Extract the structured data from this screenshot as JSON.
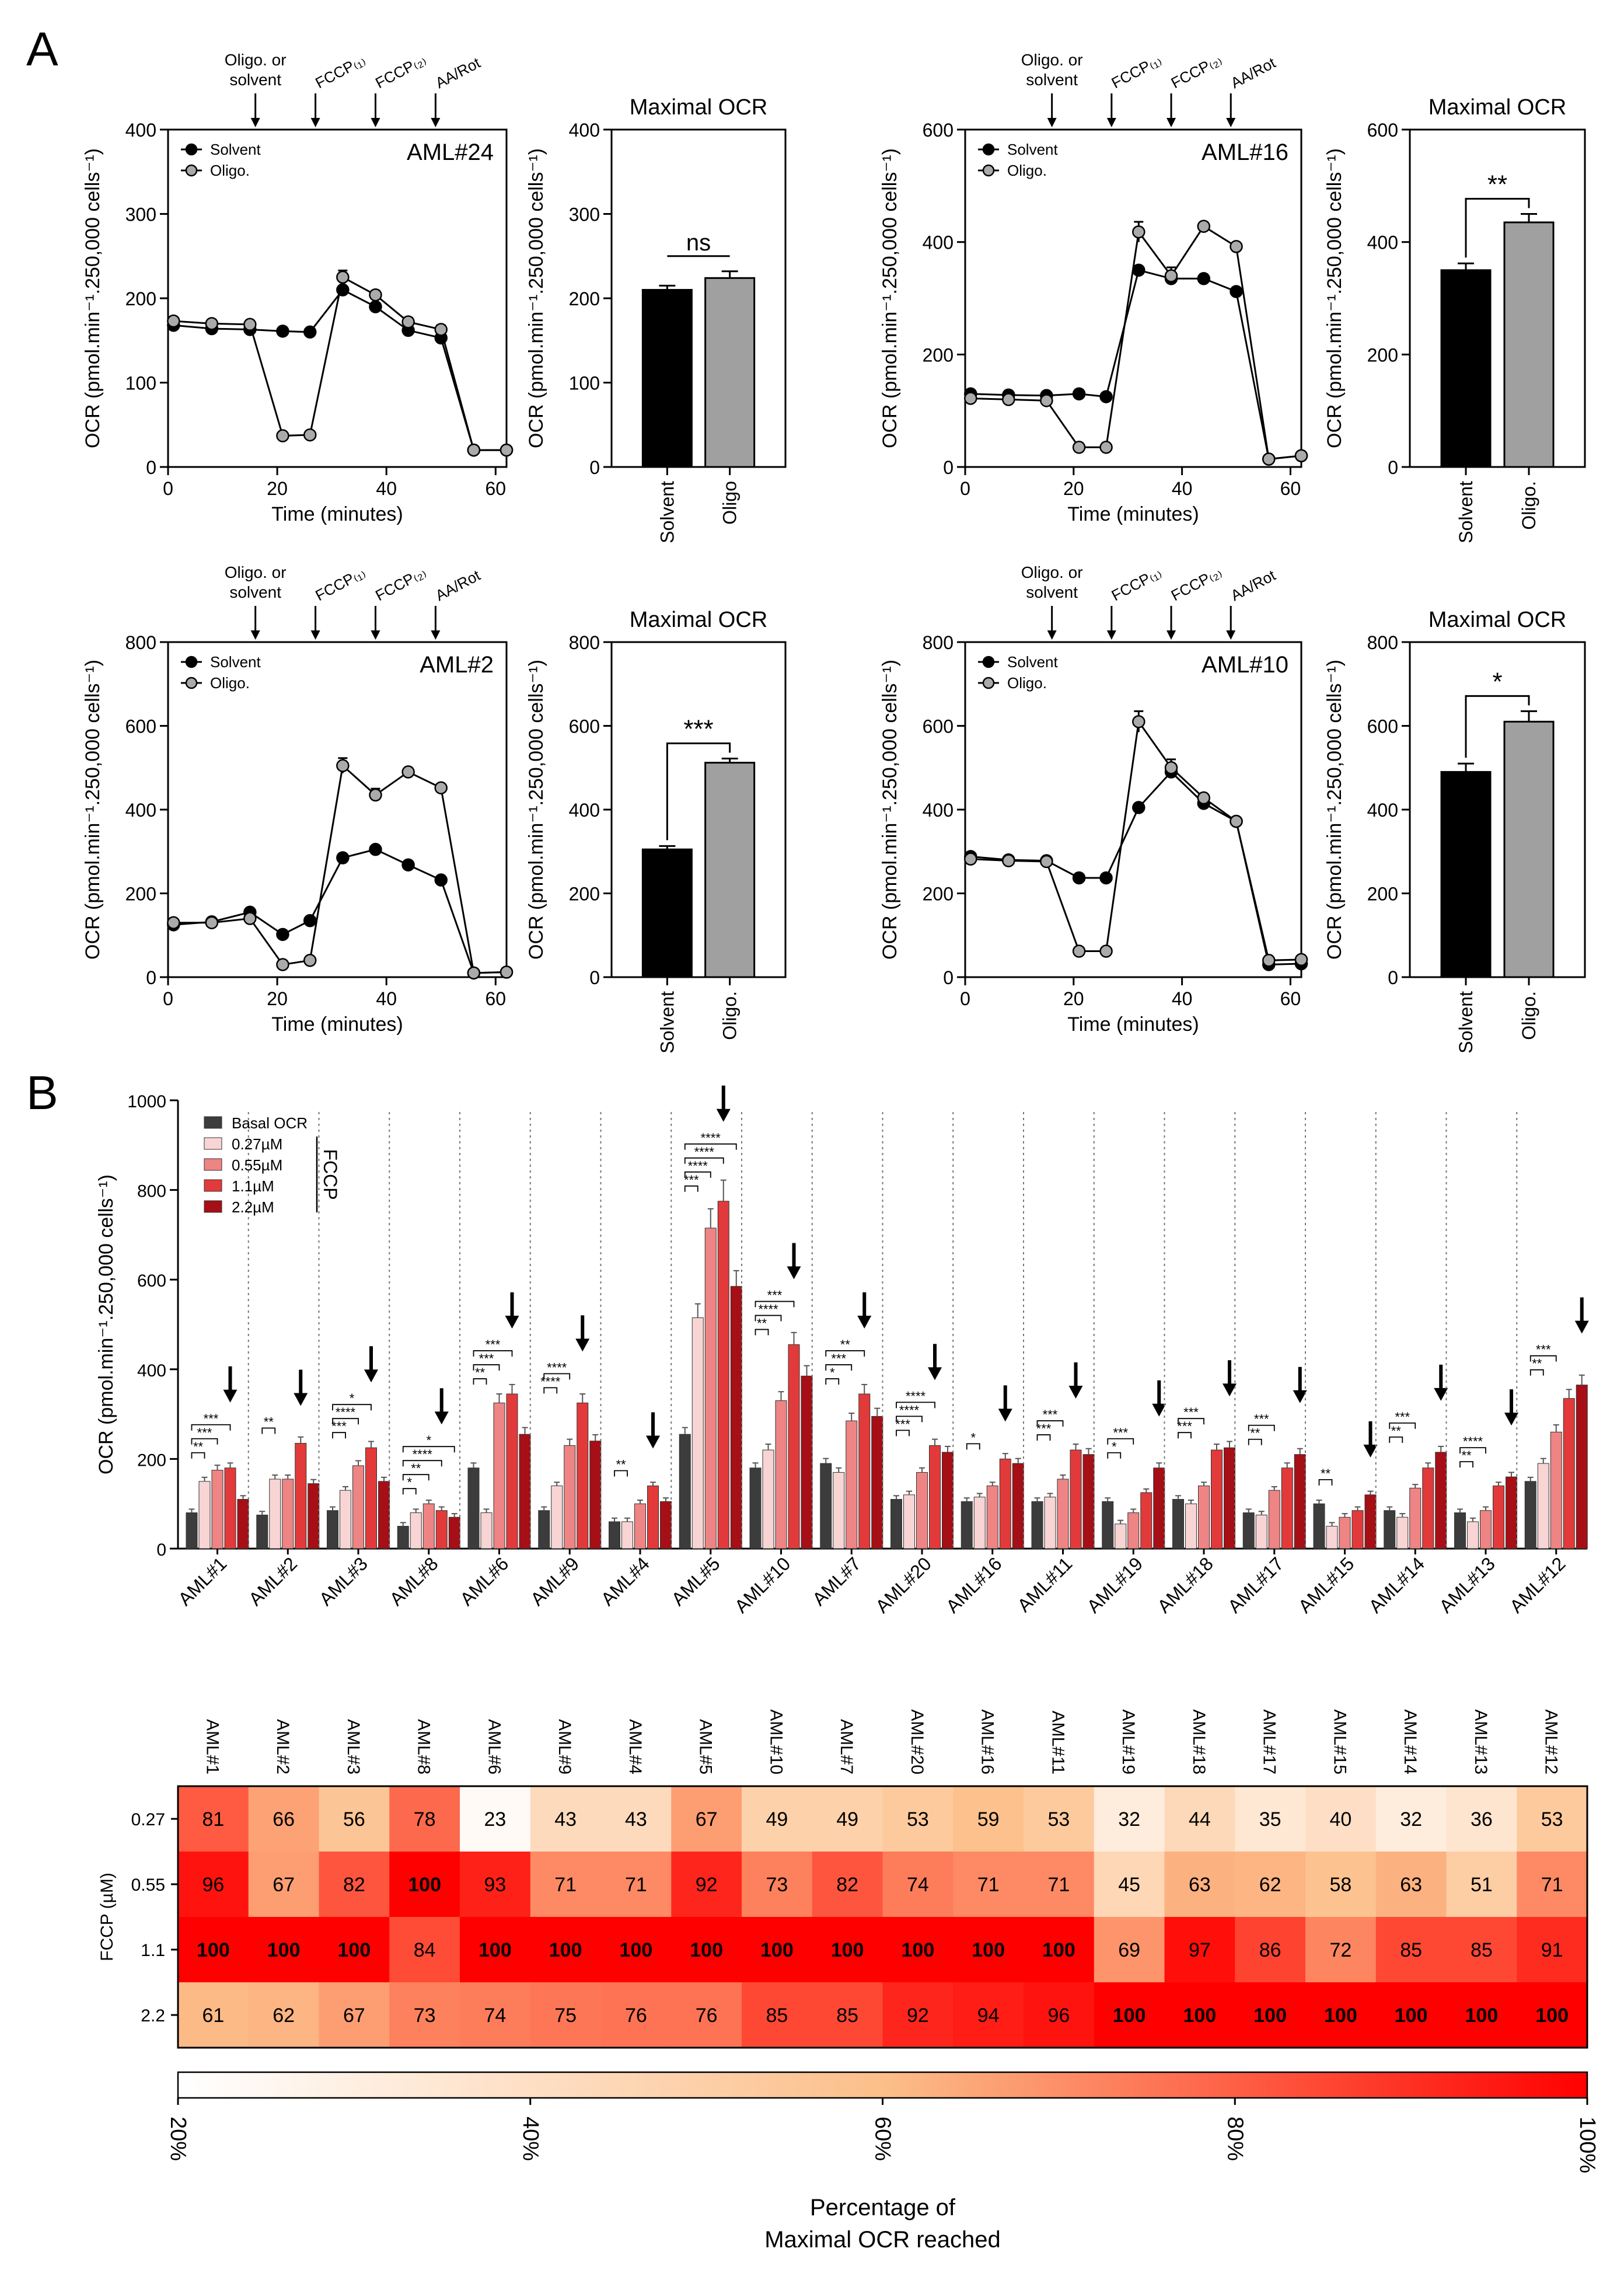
{
  "panel_labels": {
    "a": "A",
    "b": "B"
  },
  "chart_data": [
    {
      "id": "aml24-timecourse",
      "type": "line",
      "annotation": "AML#24",
      "xlabel": "Time (minutes)",
      "ylabel": "OCR (pmol.min⁻¹.250,000 cells⁻¹)",
      "xlim": [
        0,
        62
      ],
      "ylim": [
        0,
        400
      ],
      "xticks": [
        0,
        20,
        40,
        60
      ],
      "yticks": [
        0,
        100,
        200,
        300,
        400
      ],
      "legend_position": "top-left",
      "injections": [
        {
          "label": "Oligo. or solvent",
          "x": 16
        },
        {
          "label": "FCCP₍₁₎",
          "x": 27
        },
        {
          "label": "FCCP₍₂₎",
          "x": 38
        },
        {
          "label": "AA/Rot",
          "x": 49
        }
      ],
      "x": [
        1,
        8,
        15,
        21,
        26,
        32,
        38,
        44,
        50,
        56,
        62
      ],
      "series": [
        {
          "name": "Solvent",
          "color": "#000000",
          "values": [
            168,
            164,
            163,
            161,
            160,
            210,
            190,
            162,
            153,
            20,
            20
          ]
        },
        {
          "name": "Oligo.",
          "color": "#aaaaaa",
          "values": [
            173,
            170,
            169,
            37,
            38,
            225,
            204,
            172,
            163,
            20,
            20
          ],
          "errors": [
            0,
            0,
            0,
            0,
            0,
            8,
            5,
            5,
            5,
            0,
            0
          ]
        }
      ]
    },
    {
      "id": "aml24-maximal",
      "type": "bar",
      "title": "Maximal OCR",
      "ylabel": "OCR (pmol.min⁻¹.250,000 cells⁻¹)",
      "categories": [
        "Solvent",
        "Oligo"
      ],
      "values": [
        210,
        224
      ],
      "errors": [
        5,
        8
      ],
      "colors": [
        "#000000",
        "#a0a0a0"
      ],
      "ylim": [
        0,
        400
      ],
      "yticks": [
        0,
        100,
        200,
        300,
        400
      ],
      "significance": "ns"
    },
    {
      "id": "aml16-timecourse",
      "type": "line",
      "annotation": "AML#16",
      "xlabel": "Time (minutes)",
      "ylabel": "OCR (pmol.min⁻¹.250,000 cells⁻¹)",
      "xlim": [
        0,
        62
      ],
      "ylim": [
        0,
        600
      ],
      "xticks": [
        0,
        20,
        40,
        60
      ],
      "yticks": [
        0,
        200,
        400,
        600
      ],
      "legend_position": "top-left",
      "injections": [
        {
          "label": "Oligo. or solvent",
          "x": 16
        },
        {
          "label": "FCCP₍₁₎",
          "x": 27
        },
        {
          "label": "FCCP₍₂₎",
          "x": 38
        },
        {
          "label": "AA/Rot",
          "x": 49
        }
      ],
      "x": [
        1,
        8,
        15,
        21,
        26,
        32,
        38,
        44,
        50,
        56,
        62
      ],
      "series": [
        {
          "name": "Solvent",
          "color": "#000000",
          "values": [
            130,
            128,
            127,
            130,
            125,
            350,
            335,
            335,
            312,
            14,
            20
          ]
        },
        {
          "name": "Oligo.",
          "color": "#aaaaaa",
          "values": [
            122,
            120,
            118,
            35,
            35,
            418,
            340,
            428,
            392,
            14,
            20
          ],
          "errors": [
            0,
            0,
            0,
            0,
            0,
            18,
            15,
            5,
            5,
            0,
            0
          ]
        }
      ]
    },
    {
      "id": "aml16-maximal",
      "type": "bar",
      "title": "Maximal OCR",
      "ylabel": "OCR (pmol.min⁻¹.250,000 cells⁻¹)",
      "categories": [
        "Solvent",
        "Oligo."
      ],
      "values": [
        350,
        435
      ],
      "errors": [
        12,
        15
      ],
      "colors": [
        "#000000",
        "#a0a0a0"
      ],
      "ylim": [
        0,
        600
      ],
      "yticks": [
        0,
        200,
        400,
        600
      ],
      "significance": "**"
    },
    {
      "id": "aml2-timecourse",
      "type": "line",
      "annotation": "AML#2",
      "xlabel": "Time (minutes)",
      "ylabel": "OCR (pmol.min⁻¹.250,000 cells⁻¹)",
      "xlim": [
        0,
        62
      ],
      "ylim": [
        0,
        800
      ],
      "xticks": [
        0,
        20,
        40,
        60
      ],
      "yticks": [
        0,
        200,
        400,
        600,
        800
      ],
      "legend_position": "top-left",
      "injections": [
        {
          "label": "Oligo. or solvent",
          "x": 16
        },
        {
          "label": "FCCP₍₁₎",
          "x": 27
        },
        {
          "label": "FCCP₍₂₎",
          "x": 38
        },
        {
          "label": "AA/Rot",
          "x": 49
        }
      ],
      "x": [
        1,
        8,
        15,
        21,
        26,
        32,
        38,
        44,
        50,
        56,
        62
      ],
      "series": [
        {
          "name": "Solvent",
          "color": "#000000",
          "values": [
            125,
            132,
            155,
            102,
            135,
            285,
            305,
            268,
            232,
            10,
            12
          ]
        },
        {
          "name": "Oligo.",
          "color": "#aaaaaa",
          "values": [
            130,
            130,
            140,
            30,
            40,
            505,
            435,
            490,
            452,
            10,
            12
          ],
          "errors": [
            0,
            0,
            0,
            0,
            0,
            18,
            15,
            8,
            8,
            0,
            0
          ]
        }
      ]
    },
    {
      "id": "aml2-maximal",
      "type": "bar",
      "title": "Maximal OCR",
      "ylabel": "OCR (pmol.min⁻¹.250,000 cells⁻¹)",
      "categories": [
        "Solvent",
        "Oligo."
      ],
      "values": [
        305,
        512
      ],
      "errors": [
        8,
        10
      ],
      "colors": [
        "#000000",
        "#a0a0a0"
      ],
      "ylim": [
        0,
        800
      ],
      "yticks": [
        0,
        200,
        400,
        600,
        800
      ],
      "significance": "***"
    },
    {
      "id": "aml10-timecourse",
      "type": "line",
      "annotation": "AML#10",
      "xlabel": "Time (minutes)",
      "ylabel": "OCR (pmol.min⁻¹.250,000 cells⁻¹)",
      "xlim": [
        0,
        62
      ],
      "ylim": [
        0,
        800
      ],
      "xticks": [
        0,
        20,
        40,
        60
      ],
      "yticks": [
        0,
        200,
        400,
        600,
        800
      ],
      "legend_position": "top-left",
      "injections": [
        {
          "label": "Oligo. or solvent",
          "x": 16
        },
        {
          "label": "FCCP₍₁₎",
          "x": 27
        },
        {
          "label": "FCCP₍₂₎",
          "x": 38
        },
        {
          "label": "AA/Rot",
          "x": 49
        }
      ],
      "x": [
        1,
        8,
        15,
        21,
        26,
        32,
        38,
        44,
        50,
        56,
        62
      ],
      "series": [
        {
          "name": "Solvent",
          "color": "#000000",
          "values": [
            288,
            280,
            278,
            237,
            237,
            405,
            490,
            415,
            372,
            30,
            32
          ]
        },
        {
          "name": "Oligo.",
          "color": "#aaaaaa",
          "values": [
            282,
            278,
            276,
            62,
            62,
            610,
            500,
            428,
            372,
            40,
            42
          ],
          "errors": [
            0,
            0,
            0,
            0,
            0,
            25,
            20,
            8,
            8,
            0,
            0
          ]
        }
      ]
    },
    {
      "id": "aml10-maximal",
      "type": "bar",
      "title": "Maximal OCR",
      "ylabel": "OCR (pmol.min⁻¹.250,000 cells⁻¹)",
      "categories": [
        "Solvent",
        "Oligo."
      ],
      "values": [
        490,
        610
      ],
      "errors": [
        20,
        25
      ],
      "colors": [
        "#000000",
        "#a0a0a0"
      ],
      "ylim": [
        0,
        800
      ],
      "yticks": [
        0,
        200,
        400,
        600,
        800
      ],
      "significance": "*"
    },
    {
      "id": "fccp-titration",
      "type": "bar",
      "ylabel": "OCR (pmol.min⁻¹.250,000 cells⁻¹)",
      "ylim": [
        0,
        1000
      ],
      "yticks": [
        0,
        200,
        400,
        600,
        800,
        1000
      ],
      "legend_position": "top-left",
      "legend_bracket": "FCCP",
      "categories": [
        "AML#1",
        "AML#2",
        "AML#3",
        "AML#8",
        "AML#6",
        "AML#9",
        "AML#4",
        "AML#5",
        "AML#10",
        "AML#7",
        "AML#20",
        "AML#16",
        "AML#11",
        "AML#19",
        "AML#18",
        "AML#17",
        "AML#15",
        "AML#14",
        "AML#13",
        "AML#12"
      ],
      "series": [
        {
          "name": "Basal OCR",
          "color": "#3c3c3c",
          "values": [
            80,
            75,
            85,
            50,
            180,
            85,
            60,
            255,
            180,
            190,
            110,
            105,
            105,
            105,
            110,
            80,
            100,
            85,
            80,
            150
          ]
        },
        {
          "name": "0.27µM",
          "color": "#f8d4d4",
          "values": [
            150,
            155,
            130,
            80,
            80,
            140,
            60,
            515,
            220,
            170,
            120,
            115,
            115,
            55,
            100,
            75,
            50,
            70,
            60,
            190
          ]
        },
        {
          "name": "0.55µM",
          "color": "#ee8484",
          "values": [
            175,
            155,
            185,
            100,
            325,
            230,
            100,
            715,
            330,
            285,
            170,
            140,
            155,
            80,
            140,
            130,
            70,
            135,
            85,
            260
          ]
        },
        {
          "name": "1.1µM",
          "color": "#e23a3a",
          "values": [
            180,
            235,
            225,
            85,
            345,
            325,
            140,
            775,
            455,
            345,
            230,
            200,
            220,
            125,
            220,
            180,
            85,
            180,
            140,
            335
          ]
        },
        {
          "name": "2.2µM",
          "color": "#a50f15",
          "values": [
            110,
            145,
            150,
            70,
            255,
            240,
            105,
            585,
            385,
            295,
            215,
            190,
            210,
            180,
            225,
            210,
            120,
            215,
            160,
            365
          ]
        }
      ],
      "arrows": [
        3,
        3,
        3,
        3,
        3,
        3,
        3,
        3,
        3,
        3,
        3,
        3,
        3,
        4,
        4,
        4,
        4,
        4,
        4,
        4
      ],
      "significance": [
        [
          "**",
          "***",
          "***"
        ],
        [
          "**"
        ],
        [
          "***",
          "****",
          "*"
        ],
        [
          "*",
          "**",
          "****",
          "*"
        ],
        [
          "**",
          "***",
          "***"
        ],
        [
          "****",
          "****"
        ],
        [
          "**"
        ],
        [
          "***",
          "****",
          "****",
          "****"
        ],
        [
          "**",
          "****",
          "***"
        ],
        [
          "*",
          "***",
          "**"
        ],
        [
          "***",
          "****",
          "****"
        ],
        [
          "*"
        ],
        [
          "***",
          "***"
        ],
        [
          "*",
          "***"
        ],
        [
          "***",
          "***"
        ],
        [
          "**",
          "***"
        ],
        [
          "**"
        ],
        [
          "**",
          "***"
        ],
        [
          "**",
          "****"
        ],
        [
          "**",
          "***"
        ]
      ]
    },
    {
      "id": "heatmap",
      "type": "heatmap",
      "columns": [
        "AML#1",
        "AML#2",
        "AML#3",
        "AML#8",
        "AML#6",
        "AML#9",
        "AML#4",
        "AML#5",
        "AML#10",
        "AML#7",
        "AML#20",
        "AML#16",
        "AML#11",
        "AML#19",
        "AML#18",
        "AML#17",
        "AML#15",
        "AML#14",
        "AML#13",
        "AML#12"
      ],
      "rows": [
        "0.27",
        "0.55",
        "1.1",
        "2.2"
      ],
      "ylabel": "FCCP (µM)",
      "values": [
        [
          81,
          66,
          56,
          78,
          23,
          43,
          43,
          67,
          49,
          49,
          53,
          59,
          53,
          32,
          44,
          35,
          40,
          32,
          36,
          53
        ],
        [
          96,
          67,
          82,
          100,
          93,
          71,
          71,
          92,
          73,
          82,
          74,
          71,
          71,
          45,
          63,
          62,
          58,
          63,
          51,
          71
        ],
        [
          100,
          100,
          100,
          84,
          100,
          100,
          100,
          100,
          100,
          100,
          100,
          100,
          100,
          69,
          97,
          86,
          72,
          85,
          85,
          91
        ],
        [
          61,
          62,
          67,
          73,
          74,
          75,
          76,
          76,
          85,
          85,
          92,
          94,
          96,
          100,
          100,
          100,
          100,
          100,
          100,
          100
        ]
      ],
      "colorbar": {
        "ticks": [
          "20%",
          "40%",
          "60%",
          "80%",
          "100%"
        ],
        "range": [
          20,
          100
        ],
        "colors": [
          "#ffffff",
          "#fcbf8a",
          "#ff0000"
        ],
        "label_lines": [
          "Percentage of",
          "Maximal OCR reached"
        ]
      }
    }
  ]
}
